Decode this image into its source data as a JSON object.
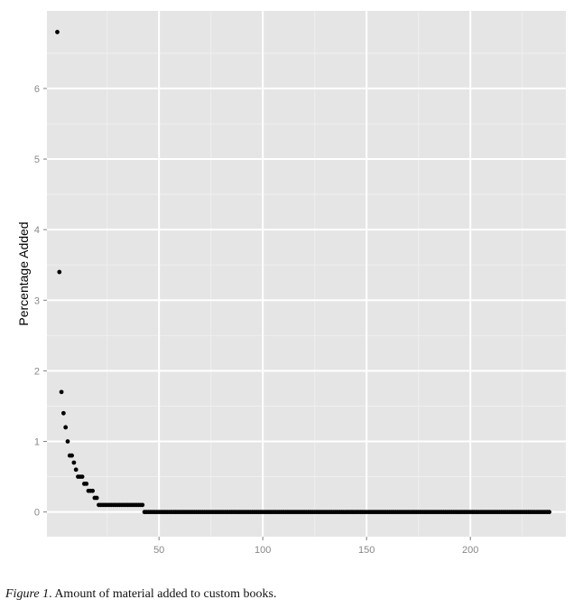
{
  "chart_data": {
    "type": "scatter",
    "title": "",
    "xlabel": "",
    "ylabel": "Percentage Added",
    "xlim": [
      -4,
      246
    ],
    "ylim": [
      -0.35,
      7.1
    ],
    "x_ticks": [
      50,
      100,
      150,
      200
    ],
    "y_ticks": [
      0,
      1,
      2,
      3,
      4,
      5,
      6
    ],
    "grid": true,
    "legend": "none",
    "colors": {
      "panel": "#e5e5e5",
      "grid_major": "#ffffff",
      "grid_minor": "#f0f0f0",
      "point": "#000000",
      "tick_text": "#888888"
    },
    "series": [
      {
        "points": [
          [
            1,
            6.8
          ],
          [
            2,
            3.4
          ],
          [
            3,
            1.7
          ],
          [
            4,
            1.4
          ],
          [
            5,
            1.2
          ],
          [
            6,
            1.0
          ],
          [
            7,
            0.8
          ],
          [
            8,
            0.8
          ],
          [
            9,
            0.7
          ],
          [
            10,
            0.6
          ],
          [
            11,
            0.5
          ],
          [
            12,
            0.5
          ],
          [
            13,
            0.5
          ],
          [
            14,
            0.4
          ],
          [
            15,
            0.4
          ],
          [
            16,
            0.3
          ],
          [
            17,
            0.3
          ],
          [
            18,
            0.3
          ],
          [
            19,
            0.2
          ],
          [
            20,
            0.2
          ]
        ],
        "constant_runs": [
          {
            "x_from": 21,
            "x_to": 42,
            "y": 0.1
          },
          {
            "x_from": 43,
            "x_to": 238,
            "y": 0.0
          }
        ]
      }
    ]
  },
  "caption": {
    "label": "Figure 1",
    "text": ". Amount of material added to custom books."
  }
}
